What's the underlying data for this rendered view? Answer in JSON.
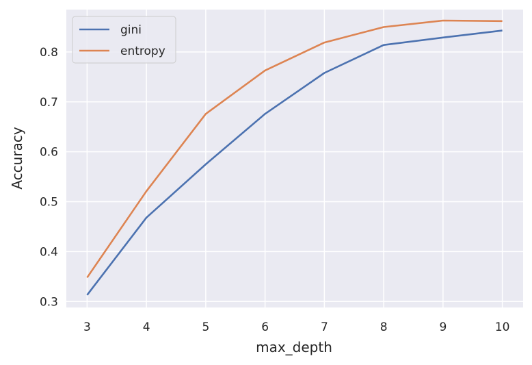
{
  "chart_data": {
    "type": "line",
    "title": "",
    "xlabel": "max_depth",
    "ylabel": "Accuracy",
    "x": [
      3,
      4,
      5,
      6,
      7,
      8,
      9,
      10
    ],
    "x_ticks": [
      "3",
      "4",
      "5",
      "6",
      "7",
      "8",
      "9",
      "10"
    ],
    "y_ticks": [
      "0.3",
      "0.4",
      "0.5",
      "0.6",
      "0.7",
      "0.8"
    ],
    "xlim": [
      2.65,
      10.35
    ],
    "ylim": [
      0.288,
      0.885
    ],
    "grid": true,
    "legend_position": "top-left",
    "series": [
      {
        "name": "gini",
        "color": "#4c72b0",
        "values": [
          0.313,
          0.468,
          0.575,
          0.676,
          0.758,
          0.814,
          0.829,
          0.843
        ]
      },
      {
        "name": "entropy",
        "color": "#dd8452",
        "values": [
          0.348,
          0.521,
          0.676,
          0.763,
          0.819,
          0.85,
          0.863,
          0.862
        ]
      }
    ],
    "colors": {
      "plot_background": "#eaeaf2",
      "grid": "#ffffff",
      "text": "#262626"
    }
  }
}
